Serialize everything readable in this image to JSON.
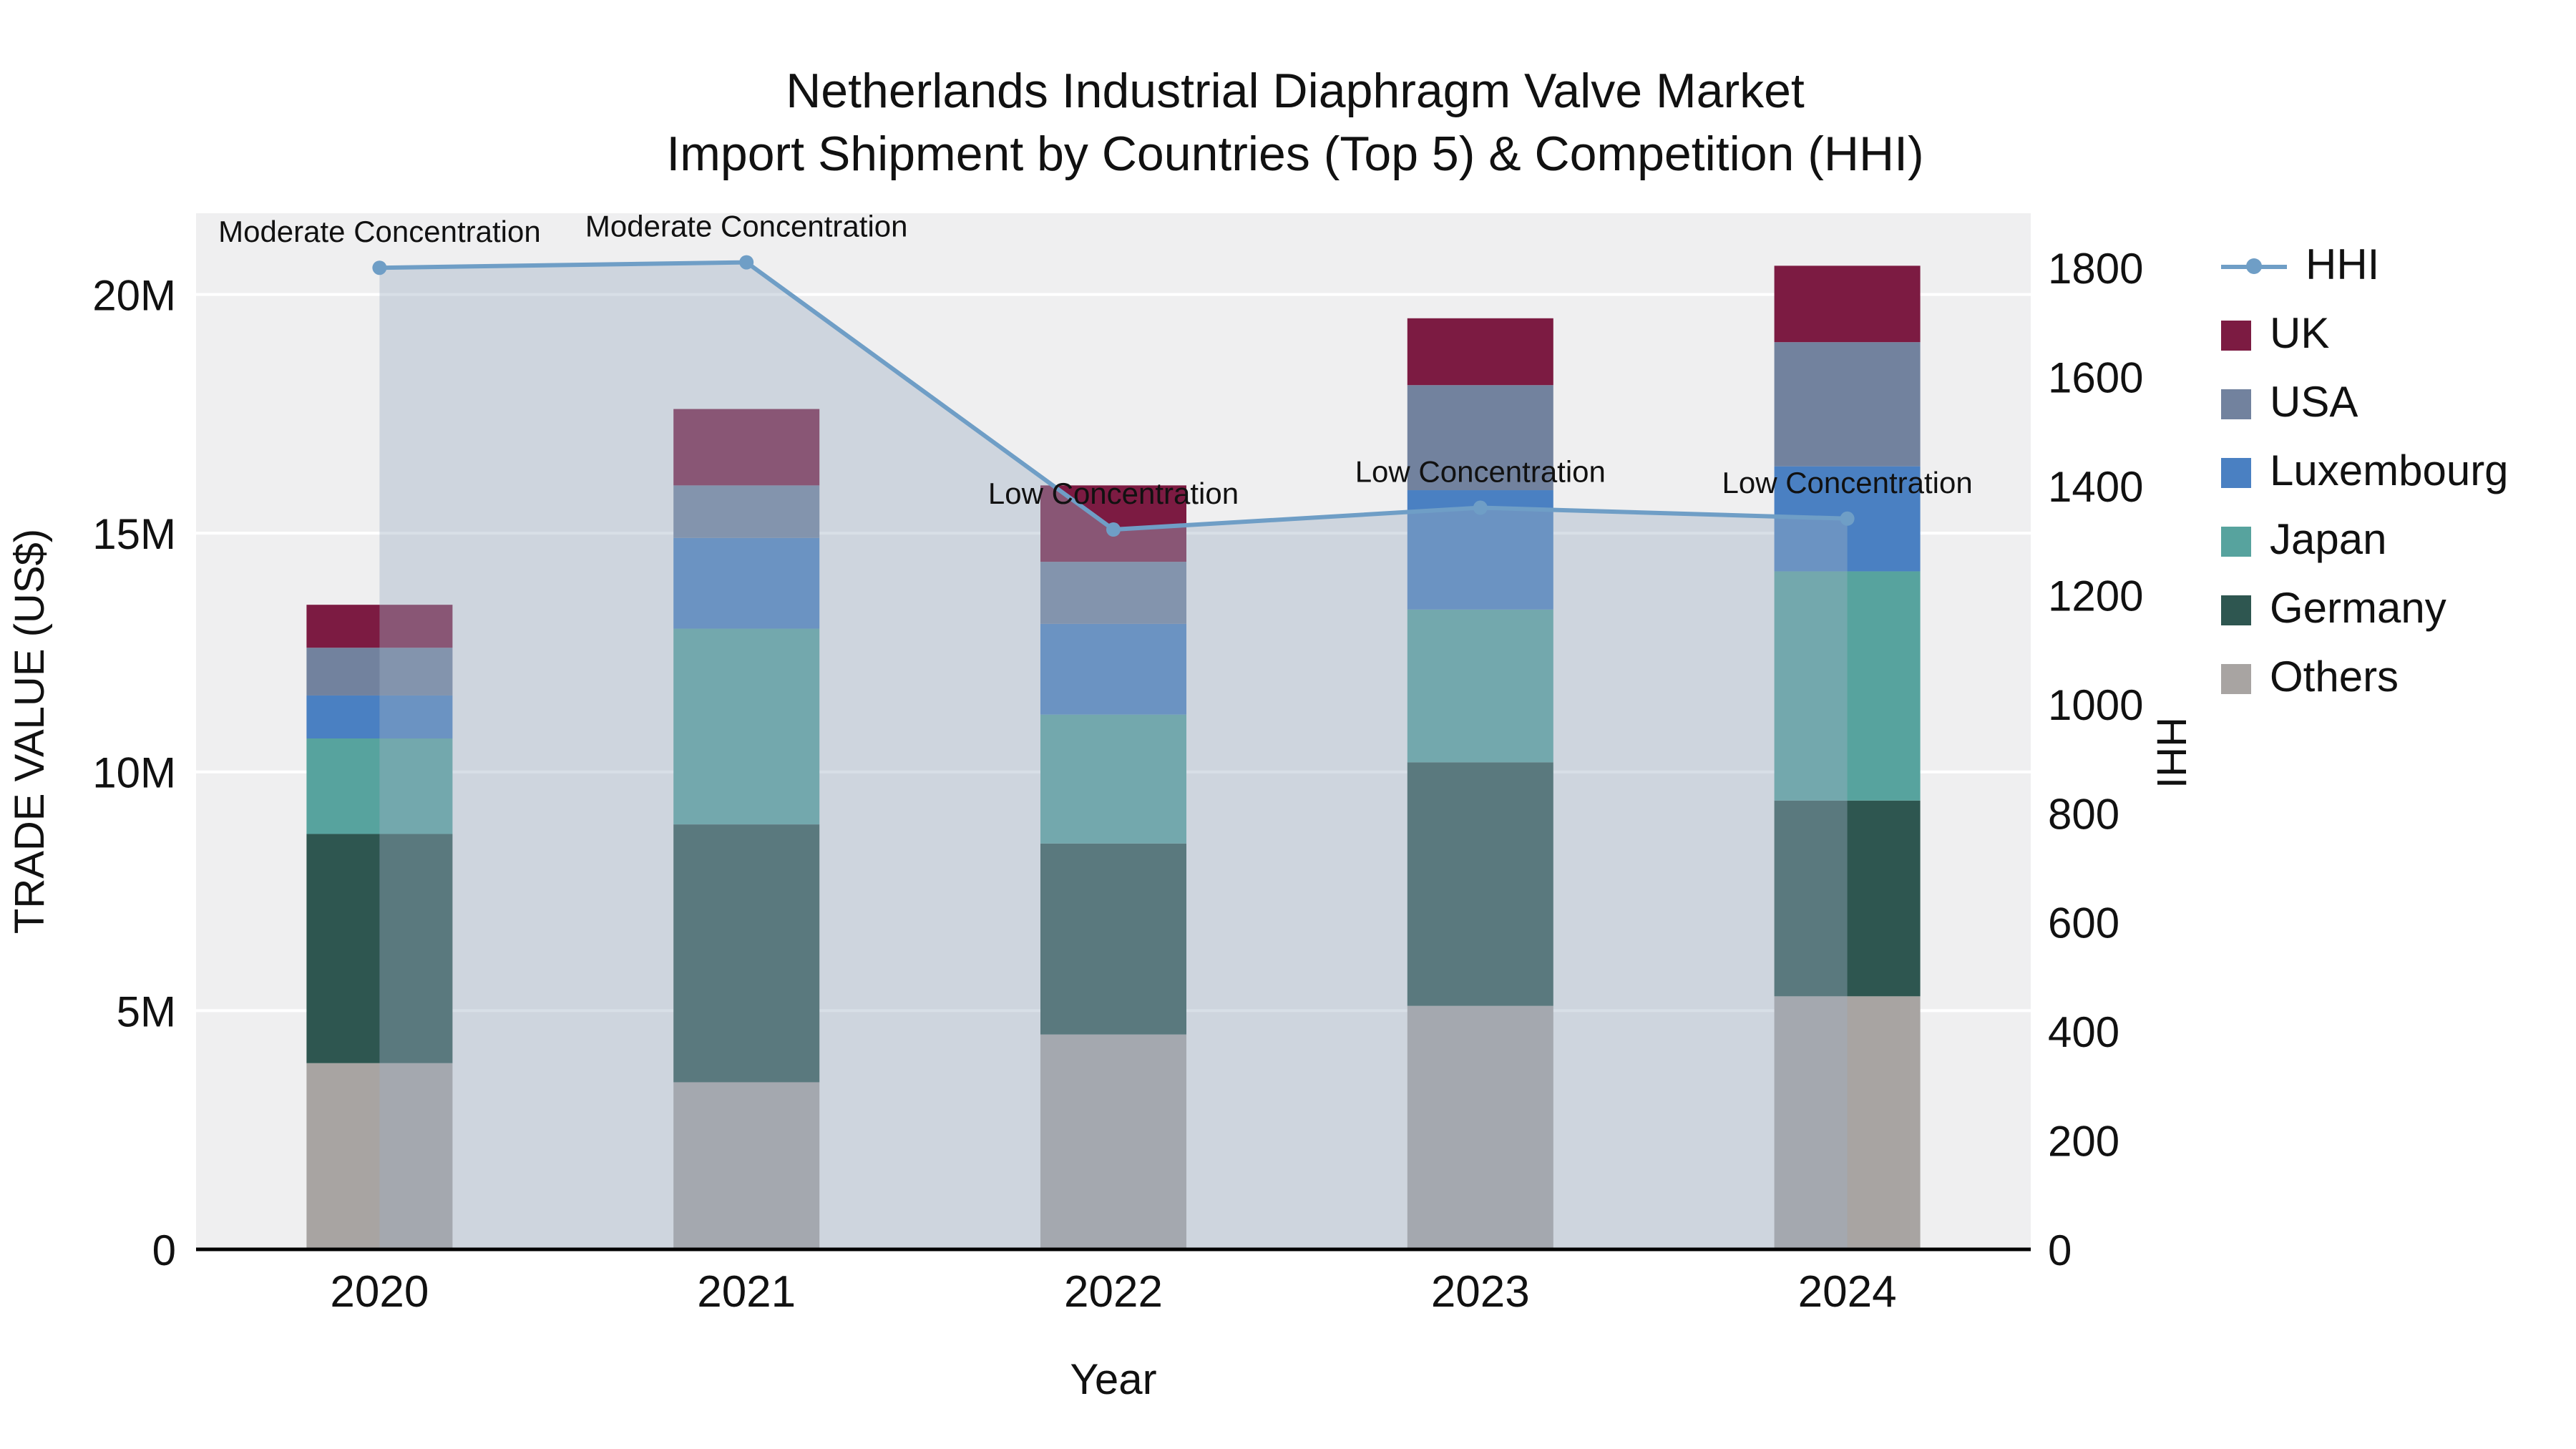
{
  "title": {
    "line1": "Netherlands Industrial Diaphragm Valve Market",
    "line2": "Import Shipment by Countries (Top 5) & Competition (HHI)"
  },
  "axes": {
    "left_title": "TRADE VALUE (US$)",
    "left_tick_labels": [
      "0",
      "5M",
      "10M",
      "15M",
      "20M"
    ],
    "left_tick_values": [
      0,
      5,
      10,
      15,
      20
    ],
    "right_title": "HHI",
    "right_tick_values": [
      0,
      200,
      400,
      600,
      800,
      1000,
      1200,
      1400,
      1600,
      1800
    ],
    "x_title": "Year",
    "x_tick_labels": [
      "2020",
      "2021",
      "2022",
      "2023",
      "2024"
    ]
  },
  "chart_data": {
    "type": "bar+line",
    "unit_left": "US$ millions",
    "unit_right": "HHI index",
    "categories": [
      "2020",
      "2021",
      "2022",
      "2023",
      "2024"
    ],
    "stack_order_bottom_to_top": [
      "Others",
      "Germany",
      "Japan",
      "Luxembourg",
      "USA",
      "UK"
    ],
    "series": [
      {
        "name": "Others",
        "color": "#a8a4a2",
        "values": [
          3.9,
          3.5,
          4.5,
          5.1,
          5.3
        ]
      },
      {
        "name": "Germany",
        "color": "#2e5650",
        "values": [
          4.8,
          5.4,
          4.0,
          5.1,
          4.1
        ]
      },
      {
        "name": "Japan",
        "color": "#57a39e",
        "values": [
          2.0,
          4.1,
          2.7,
          3.2,
          4.8
        ]
      },
      {
        "name": "Luxembourg",
        "color": "#4a80c2",
        "values": [
          0.9,
          1.9,
          1.9,
          2.5,
          2.2
        ]
      },
      {
        "name": "USA",
        "color": "#72829e",
        "values": [
          1.0,
          1.1,
          1.3,
          2.2,
          2.6
        ]
      },
      {
        "name": "UK",
        "color": "#7c1b42",
        "values": [
          0.9,
          1.6,
          1.6,
          1.4,
          1.6
        ]
      }
    ],
    "bar_totals": [
      13.5,
      17.6,
      16.0,
      19.5,
      20.6
    ],
    "line": {
      "name": "HHI",
      "values": [
        1800,
        1810,
        1320,
        1360,
        1340
      ],
      "color": "#6f9ec6",
      "fill_color": "rgba(158,174,194,0.40)"
    },
    "annotations": [
      {
        "text": "Moderate Concentration",
        "category": "2020"
      },
      {
        "text": "Moderate Concentration",
        "category": "2021"
      },
      {
        "text": "Low Concentration",
        "category": "2022"
      },
      {
        "text": "Low Concentration",
        "category": "2023"
      },
      {
        "text": "Low Concentration",
        "category": "2024"
      }
    ],
    "ylim_left": [
      0,
      21.7
    ],
    "ylim_right": [
      0,
      1900
    ],
    "grid": true,
    "legend_position": "right"
  },
  "legend": {
    "items": [
      {
        "label": "HHI",
        "type": "line",
        "color": "#6f9ec6"
      },
      {
        "label": "UK",
        "type": "swatch",
        "color": "#7c1b42"
      },
      {
        "label": "USA",
        "type": "swatch",
        "color": "#72829e"
      },
      {
        "label": "Luxembourg",
        "type": "swatch",
        "color": "#4a80c2"
      },
      {
        "label": "Japan",
        "type": "swatch",
        "color": "#57a39e"
      },
      {
        "label": "Germany",
        "type": "swatch",
        "color": "#2e5650"
      },
      {
        "label": "Others",
        "type": "swatch",
        "color": "#a8a4a2"
      }
    ]
  },
  "colors": {
    "plot_bg": "#efeff0",
    "grid": "#ffffff",
    "axis_line": "#000000",
    "text": "#111111"
  }
}
